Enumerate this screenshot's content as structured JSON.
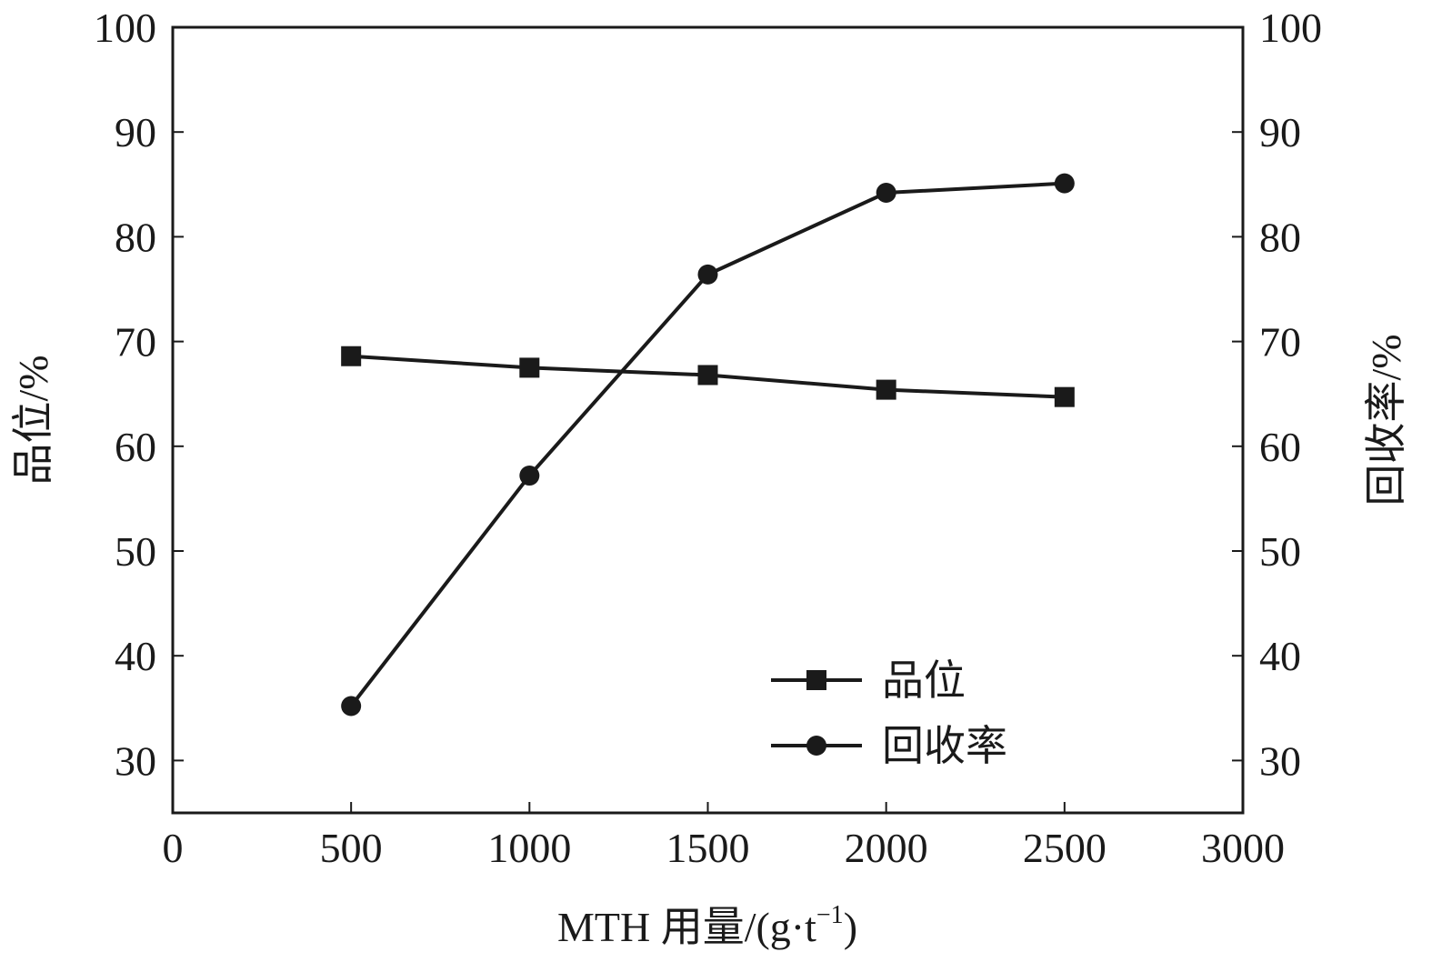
{
  "chart_data": {
    "type": "line",
    "x": [
      500,
      1000,
      1500,
      2000,
      2500
    ],
    "series": [
      {
        "name": "品位",
        "axis": "left",
        "marker": "square",
        "values": [
          68.6,
          67.5,
          66.8,
          65.4,
          64.7
        ]
      },
      {
        "name": "回收率",
        "axis": "right",
        "marker": "circle",
        "values": [
          35.2,
          57.2,
          76.4,
          84.2,
          85.1
        ]
      }
    ],
    "xlabel": "MTH 用量/(g·t",
    "xlabel_sup": "−1",
    "xlabel_end": ")",
    "ylabel_left": "品位/%",
    "ylabel_right": "回收率/%",
    "xlim": [
      0,
      3000
    ],
    "ylim_left": [
      25,
      100
    ],
    "ylim_right": [
      25,
      100
    ],
    "x_ticks": [
      "0",
      "500",
      "1000",
      "1500",
      "2000",
      "2500",
      "3000"
    ],
    "y_ticks": [
      "30",
      "40",
      "50",
      "60",
      "70",
      "80",
      "90",
      "100"
    ],
    "grid": false,
    "legend_position": "bottom-right",
    "line_color": "#1a1a1a"
  }
}
